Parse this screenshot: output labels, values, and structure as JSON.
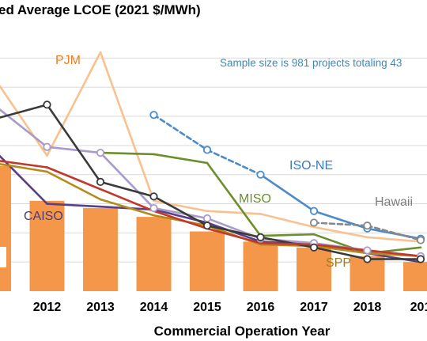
{
  "chart_data": {
    "type": "line",
    "title": "ed Average LCOE (2021 $/MWh)",
    "xlabel": "Commercial Operation Year",
    "note": "Sample size is 981 projects totaling 43",
    "categories": [
      "1",
      "2012",
      "2013",
      "2014",
      "2015",
      "2016",
      "2017",
      "2018",
      "201"
    ],
    "bars": {
      "name": "",
      "color": "#f4974a",
      "values": [
        86,
        62,
        57,
        51,
        41,
        34,
        30,
        24,
        20
      ]
    },
    "ylim": [
      0,
      170
    ],
    "grid": true,
    "series": [
      {
        "name": "PJM",
        "color": "#f8c18f",
        "labelColor": "#f07e26",
        "values": [
          147,
          93,
          164,
          62,
          55,
          53,
          44,
          37,
          34
        ]
      },
      {
        "name": "ISO-NE",
        "color": "#4b8bcb",
        "labelColor": "#3a7bbd",
        "values": [
          null,
          null,
          null,
          121,
          97,
          80,
          55,
          43,
          36
        ],
        "dashUntil": 5
      },
      {
        "name": "MISO",
        "color": "#6b8f2c",
        "labelColor": "#6b8f2c",
        "values": [
          null,
          null,
          95,
          94,
          88,
          38,
          39,
          26,
          30
        ]
      },
      {
        "name": "Hawaii",
        "color": "#888888",
        "labelColor": "#7f7f7f",
        "values": [
          null,
          null,
          null,
          null,
          null,
          null,
          47,
          45,
          35
        ],
        "dashed": true
      },
      {
        "name": "CAISO",
        "color": "#5a3f86",
        "labelColor": "#4a3a7a",
        "values": [
          97,
          60,
          58,
          56,
          47,
          34,
          32,
          26,
          20
        ]
      },
      {
        "name": "SPP",
        "color": "#b58a1a",
        "labelColor": "#9e7d1e",
        "values": [
          88,
          82,
          63,
          52,
          45,
          32,
          31,
          26,
          24
        ]
      },
      {
        "name": "",
        "color": "#a99bc9",
        "values": [
          128,
          99,
          95,
          57,
          50,
          36,
          33,
          28,
          24
        ]
      },
      {
        "name": "",
        "color": "#3a3a3a",
        "values": [
          118,
          128,
          75,
          65,
          45,
          37,
          30,
          22,
          22
        ]
      },
      {
        "name": "",
        "color": "#c0392b",
        "values": [
          90,
          85,
          70,
          55,
          43,
          33,
          32,
          28,
          24
        ]
      }
    ]
  }
}
